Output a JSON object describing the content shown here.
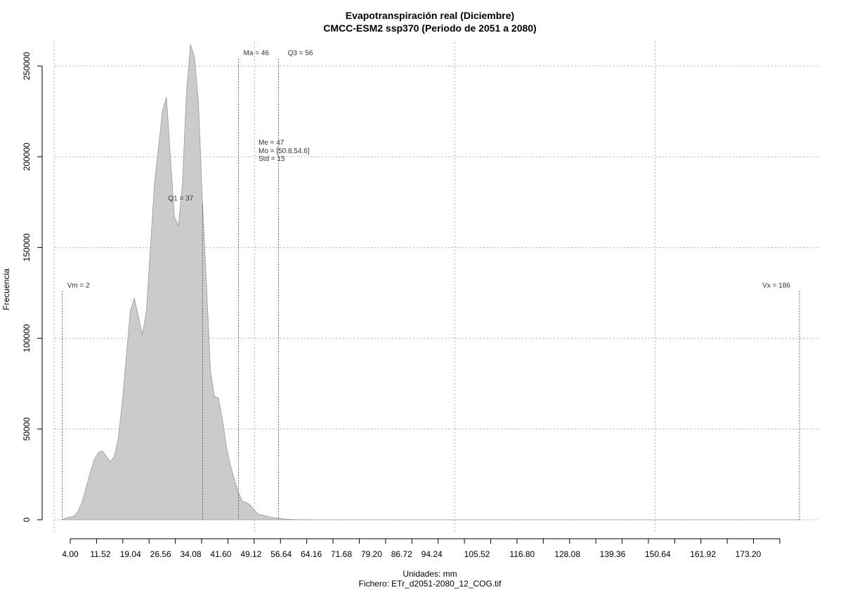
{
  "chart_data": {
    "type": "area",
    "title": "Evapotranspiración real (Diciembre)",
    "subtitle": "CMCC-ESM2 ssp370 (Periodo de 2051 a 2080)",
    "xlabel": "Unidades: mm",
    "footer": "Fichero: ETr_d2051-2080_12_COG.tif",
    "ylabel": "Frecuencia",
    "xlim": [
      0,
      186
    ],
    "ylim": [
      0,
      262000
    ],
    "x_ticks": [
      "4.00",
      "11.52",
      "19.04",
      "26.56",
      "34.08",
      "41.60",
      "49.12",
      "56.64",
      "64.16",
      "71.68",
      "79.20",
      "86.72",
      "94.24",
      "105.52",
      "116.80",
      "128.08",
      "139.36",
      "150.64",
      "161.92",
      "173.20"
    ],
    "y_ticks": [
      "0",
      "50000",
      "100000",
      "150000",
      "200000",
      "250000"
    ],
    "grid": true,
    "series": [
      {
        "x": [
          2,
          3,
          4,
          5,
          6,
          7,
          8,
          9,
          10,
          11,
          12,
          13,
          14,
          15,
          16,
          17,
          18,
          19,
          20,
          21,
          22,
          23,
          24,
          25,
          26,
          27,
          28,
          29,
          30,
          31,
          32,
          33,
          34,
          35,
          36,
          37,
          38,
          39,
          40,
          41,
          42,
          43,
          44,
          45,
          46,
          47,
          48,
          49,
          50,
          51,
          52,
          53,
          54,
          55,
          56,
          57,
          58,
          59,
          60,
          61,
          62,
          63,
          64,
          65,
          66,
          67,
          68,
          69,
          70,
          71,
          72,
          73,
          74,
          75,
          76,
          77,
          78,
          79,
          80,
          81,
          82,
          83,
          84,
          85,
          86,
          87,
          88,
          89,
          90,
          91,
          92,
          93,
          94,
          95,
          96,
          100,
          105,
          110,
          120,
          130,
          140,
          150,
          160,
          170,
          180,
          186
        ],
        "y": [
          0,
          1000,
          1500,
          2000,
          5000,
          10000,
          18000,
          26000,
          33000,
          37000,
          38000,
          35000,
          32000,
          35000,
          45000,
          65000,
          90000,
          115000,
          122000,
          112000,
          102000,
          115000,
          150000,
          185000,
          205000,
          225000,
          233000,
          200000,
          167000,
          162000,
          185000,
          235000,
          262000,
          255000,
          230000,
          175000,
          130000,
          82000,
          68000,
          67000,
          55000,
          40000,
          30000,
          22000,
          15000,
          10000,
          9500,
          8000,
          5000,
          3000,
          2500,
          2000,
          1500,
          1000,
          800,
          500,
          300,
          200,
          100,
          80,
          60,
          50,
          40,
          30,
          20,
          15,
          12,
          10,
          8,
          6,
          5,
          5,
          4,
          4,
          3,
          3,
          3,
          2,
          2,
          2,
          2,
          2,
          2,
          2,
          2,
          2,
          2,
          2,
          2,
          2,
          2,
          2,
          2,
          2,
          2,
          2,
          2,
          1,
          1,
          1,
          1,
          1,
          1,
          1,
          1,
          0
        ]
      }
    ],
    "reference_lines": [
      {
        "label": "Vm = 2",
        "x": 2,
        "top": 126000,
        "label_side": "right"
      },
      {
        "label": "Q1 = 37",
        "x": 37,
        "top": 174000,
        "label_side": "left"
      },
      {
        "label": "Ma = 46",
        "x": 46,
        "top": 254000,
        "label_side": "right"
      },
      {
        "label": "Q3 = 56",
        "x": 56,
        "top": 254000,
        "label_side": "right-far"
      },
      {
        "label": "Vx = 186",
        "x": 186,
        "top": 126000,
        "label_side": "left"
      }
    ],
    "stats_labels": [
      "Me = 47",
      "Mo = [50.8,54.6]",
      "Std = 15"
    ],
    "fill_color": "#cbcbcb",
    "edge_color": "#9a9a9a"
  }
}
